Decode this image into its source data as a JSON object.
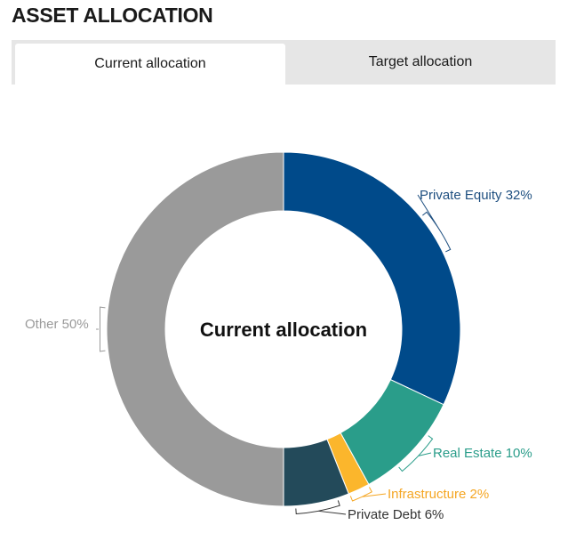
{
  "header": {
    "title": "ASSET ALLOCATION"
  },
  "tabs": [
    {
      "label": "Current allocation",
      "active": true
    },
    {
      "label": "Target allocation",
      "active": false
    }
  ],
  "chart_data": {
    "type": "pie",
    "title": "",
    "center_label": "Current allocation",
    "categories": [
      "Private Equity",
      "Real Estate",
      "Infrastructure",
      "Private Debt",
      "Other"
    ],
    "values": [
      32,
      10,
      2,
      6,
      50
    ],
    "labels": [
      "Private Equity 32%",
      "Real Estate 10%",
      "Infrastructure 2%",
      "Private Debt 6%",
      "Other 50%"
    ],
    "colors": [
      "#004a8a",
      "#2a9d8a",
      "#fbb62c",
      "#234a5a",
      "#9a9a9a"
    ],
    "label_colors": [
      "#1e4f80",
      "#2a9d8a",
      "#f5a623",
      "#333333",
      "#9a9a9a"
    ],
    "donut": true,
    "legend": "none"
  }
}
